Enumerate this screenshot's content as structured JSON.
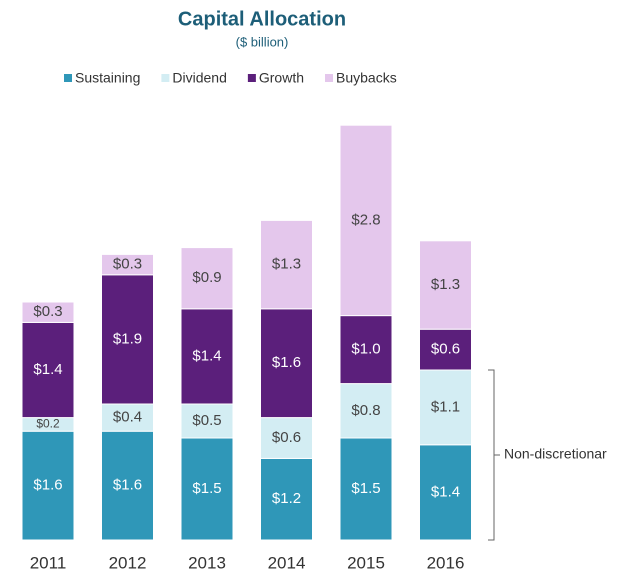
{
  "chart_data": {
    "type": "stacked-bar",
    "title": "Capital Allocation",
    "subtitle": "($ billion)",
    "categories": [
      "2011",
      "2012",
      "2013",
      "2014",
      "2015",
      "2016"
    ],
    "series": [
      {
        "name": "Sustaining",
        "color": "#2f97b8",
        "values": [
          1.6,
          1.6,
          1.5,
          1.2,
          1.5,
          1.4
        ],
        "value_labels": [
          "$1.6",
          "$1.6",
          "$1.5",
          "$1.2",
          "$1.5",
          "$1.4"
        ]
      },
      {
        "name": "Dividend",
        "color": "#d3edf3",
        "values": [
          0.2,
          0.4,
          0.5,
          0.6,
          0.8,
          1.1
        ],
        "value_labels": [
          "$0.2",
          "$0.4",
          "$0.5",
          "$0.6",
          "$0.8",
          "$1.1"
        ]
      },
      {
        "name": "Growth",
        "color": "#5b1f7b",
        "values": [
          1.4,
          1.9,
          1.4,
          1.6,
          1.0,
          0.6
        ],
        "value_labels": [
          "$1.4",
          "$1.9",
          "$1.4",
          "$1.6",
          "$1.0",
          "$0.6"
        ]
      },
      {
        "name": "Buybacks",
        "color": "#e4c7ec",
        "values": [
          0.3,
          0.3,
          0.9,
          1.3,
          2.8,
          1.3
        ],
        "value_labels": [
          "$0.3",
          "$0.3",
          "$0.9",
          "$1.3",
          "$2.8",
          "$1.3"
        ]
      }
    ],
    "annotation": "Non-discretionar"
  }
}
